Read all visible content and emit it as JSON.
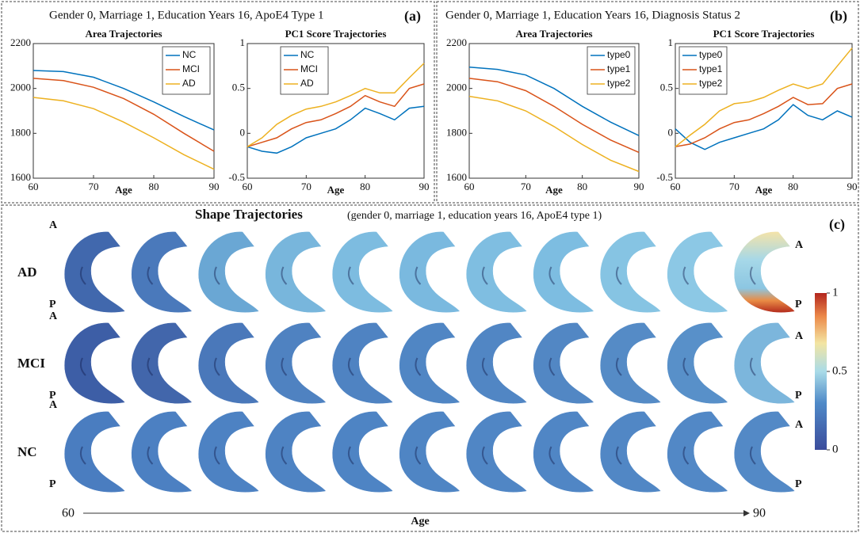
{
  "panels": [
    {
      "header": "Gender 0, Marriage 1, Education Years 16, ApoE4 Type 1",
      "label": "(a)"
    },
    {
      "header": "Gender 0, Marriage 1, Education Years 16, Diagnosis Status 2",
      "label": "(b)"
    }
  ],
  "chart_data": [
    {
      "type": "line",
      "title": "Area Trajectories",
      "x_label": "Age",
      "x": [
        60,
        65,
        70,
        75,
        80,
        85,
        90
      ],
      "xlim": [
        60,
        90
      ],
      "xticks": [
        60,
        70,
        80,
        90
      ],
      "ylim": [
        1600,
        2200
      ],
      "yticks": [
        1600,
        1800,
        2000,
        2200
      ],
      "legend": "upper right",
      "series": [
        {
          "name": "NC",
          "color": "#0072bd",
          "values": [
            2080,
            2075,
            2050,
            2000,
            1940,
            1875,
            1815
          ]
        },
        {
          "name": "MCI",
          "color": "#d95319",
          "values": [
            2045,
            2035,
            2005,
            1955,
            1885,
            1800,
            1720
          ]
        },
        {
          "name": "AD",
          "color": "#edb120",
          "values": [
            1960,
            1945,
            1910,
            1850,
            1780,
            1705,
            1640
          ]
        }
      ]
    },
    {
      "type": "line",
      "title": "PC1 Score Trajectories",
      "x_label": "Age",
      "x": [
        60,
        62.5,
        65,
        67.5,
        70,
        72.5,
        75,
        77.5,
        80,
        82.5,
        85,
        87.5,
        90
      ],
      "xlim": [
        60,
        90
      ],
      "xticks": [
        60,
        70,
        80,
        90
      ],
      "ylim": [
        -0.5,
        1
      ],
      "yticks": [
        -0.5,
        0,
        0.5,
        1
      ],
      "legend": "upper center",
      "series": [
        {
          "name": "NC",
          "color": "#0072bd",
          "values": [
            -0.15,
            -0.2,
            -0.22,
            -0.15,
            -0.05,
            0,
            0.05,
            0.15,
            0.28,
            0.22,
            0.15,
            0.28,
            0.3
          ]
        },
        {
          "name": "MCI",
          "color": "#d95319",
          "values": [
            -0.15,
            -0.1,
            -0.05,
            0.05,
            0.12,
            0.15,
            0.22,
            0.3,
            0.42,
            0.35,
            0.3,
            0.5,
            0.55
          ]
        },
        {
          "name": "AD",
          "color": "#edb120",
          "values": [
            -0.15,
            -0.05,
            0.1,
            0.2,
            0.27,
            0.3,
            0.35,
            0.42,
            0.5,
            0.45,
            0.45,
            0.62,
            0.78
          ]
        }
      ]
    },
    {
      "type": "line",
      "title": "Area Trajectories",
      "x_label": "Age",
      "x": [
        60,
        65,
        70,
        75,
        80,
        85,
        90
      ],
      "xlim": [
        60,
        90
      ],
      "xticks": [
        60,
        70,
        80,
        90
      ],
      "ylim": [
        1600,
        2200
      ],
      "yticks": [
        1600,
        1800,
        2000,
        2200
      ],
      "legend": "upper right",
      "series": [
        {
          "name": "type0",
          "color": "#0072bd",
          "values": [
            2095,
            2085,
            2060,
            2000,
            1920,
            1850,
            1790
          ]
        },
        {
          "name": "type1",
          "color": "#d95319",
          "values": [
            2045,
            2030,
            1990,
            1920,
            1840,
            1770,
            1715
          ]
        },
        {
          "name": "type2",
          "color": "#edb120",
          "values": [
            1965,
            1945,
            1900,
            1830,
            1750,
            1680,
            1630
          ]
        }
      ]
    },
    {
      "type": "line",
      "title": "PC1 Score Trajectories",
      "x_label": "Age",
      "x": [
        60,
        62.5,
        65,
        67.5,
        70,
        72.5,
        75,
        77.5,
        80,
        82.5,
        85,
        87.5,
        90
      ],
      "xlim": [
        60,
        90
      ],
      "xticks": [
        60,
        70,
        80,
        90
      ],
      "ylim": [
        -0.5,
        1
      ],
      "yticks": [
        -0.5,
        0,
        0.5,
        1
      ],
      "legend": "upper left",
      "series": [
        {
          "name": "type0",
          "color": "#0072bd",
          "values": [
            0.05,
            -0.1,
            -0.18,
            -0.1,
            -0.05,
            0,
            0.05,
            0.15,
            0.32,
            0.2,
            0.15,
            0.25,
            0.18
          ]
        },
        {
          "name": "type1",
          "color": "#d95319",
          "values": [
            -0.15,
            -0.12,
            -0.05,
            0.05,
            0.12,
            0.15,
            0.22,
            0.3,
            0.4,
            0.32,
            0.33,
            0.5,
            0.55
          ]
        },
        {
          "name": "type2",
          "color": "#edb120",
          "values": [
            -0.15,
            -0.02,
            0.1,
            0.25,
            0.33,
            0.35,
            0.4,
            0.48,
            0.55,
            0.5,
            0.55,
            0.75,
            0.95
          ]
        }
      ]
    }
  ],
  "shape_panel": {
    "title": "Shape Trajectories",
    "subtitle": "(gender 0, marriage 1, education years 16, ApoE4 type 1)",
    "label": "(c)",
    "rows": [
      "AD",
      "MCI",
      "NC"
    ],
    "anterior": "A",
    "posterior": "P",
    "age_start": "60",
    "age_end": "90",
    "axis_label": "Age",
    "colorbar": {
      "lim": [
        0,
        1
      ],
      "ticks": [
        0,
        0.5,
        1
      ]
    }
  }
}
